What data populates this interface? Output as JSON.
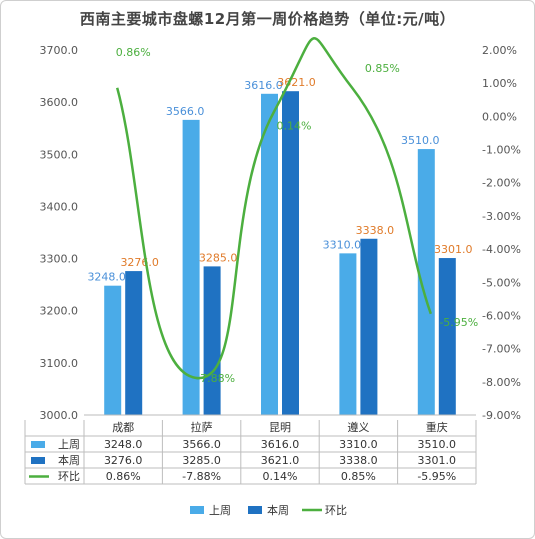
{
  "chart_data": {
    "type": "bar",
    "title": "西南主要城市盘螺12月第一周价格趋势（单位:元/吨）",
    "categories": [
      "成都",
      "拉萨",
      "昆明",
      "遵义",
      "重庆"
    ],
    "series": [
      {
        "name": "上周",
        "kind": "bar",
        "axis": "left",
        "color": "#4aabe8",
        "values": [
          3248.0,
          3566.0,
          3616.0,
          3310.0,
          3510.0
        ],
        "labels": [
          "3248.0",
          "3566.0",
          "3616.0",
          "3310.0",
          "3510.0"
        ]
      },
      {
        "name": "本周",
        "kind": "bar",
        "axis": "left",
        "color": "#1f72c2",
        "values": [
          3276.0,
          3285.0,
          3621.0,
          3338.0,
          3301.0
        ],
        "labels": [
          "3276.0",
          "3285.0",
          "3621.0",
          "3338.0",
          "3301.0"
        ]
      },
      {
        "name": "环比",
        "kind": "line",
        "axis": "right",
        "color": "#4caf3f",
        "values": [
          0.86,
          -7.88,
          0.14,
          0.85,
          -5.95
        ],
        "labels": [
          "0.86%",
          "-7.88%",
          "0.14%",
          "0.85%",
          "-5.95%"
        ]
      }
    ],
    "left_axis": {
      "min": 3000,
      "max": 3700,
      "step": 100,
      "ticks": [
        "3000.0",
        "3100.0",
        "3200.0",
        "3300.0",
        "3400.0",
        "3500.0",
        "3600.0",
        "3700.0"
      ]
    },
    "right_axis": {
      "min": -9,
      "max": 2,
      "step": 1,
      "ticks": [
        "-9.00%",
        "-8.00%",
        "-7.00%",
        "-6.00%",
        "-5.00%",
        "-4.00%",
        "-3.00%",
        "-2.00%",
        "-1.00%",
        "0.00%",
        "1.00%",
        "2.00%"
      ]
    },
    "data_table": {
      "rows": [
        {
          "label": "上周",
          "cells": [
            "3248.0",
            "3566.0",
            "3616.0",
            "3310.0",
            "3510.0"
          ]
        },
        {
          "label": "本周",
          "cells": [
            "3276.0",
            "3285.0",
            "3621.0",
            "3338.0",
            "3301.0"
          ]
        },
        {
          "label": "环比",
          "cells": [
            "0.86%",
            "-7.88%",
            "0.14%",
            "0.85%",
            "-5.95%"
          ]
        }
      ]
    },
    "legend": [
      "上周",
      "本周",
      "环比"
    ],
    "legend_position": "bottom",
    "grid": false
  }
}
